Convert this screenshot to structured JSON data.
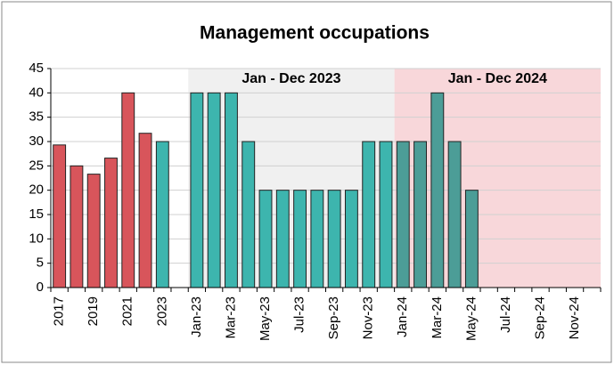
{
  "chart_data": {
    "type": "bar",
    "title": "Management occupations",
    "categories": [
      "2017",
      null,
      "2019",
      null,
      "2021",
      null,
      "2023",
      null,
      "Jan-23",
      null,
      "Mar-23",
      null,
      "May-23",
      null,
      "Jul-23",
      null,
      "Sep-23",
      null,
      "Nov-23",
      null,
      "Jan-24",
      null,
      "Mar-24",
      null,
      "May-24",
      null,
      "Jul-24",
      null,
      "Sep-24",
      null,
      "Nov-24",
      null
    ],
    "values": [
      29.3,
      25,
      23.3,
      26.6,
      40,
      31.7,
      30,
      null,
      40,
      40,
      40,
      30,
      20,
      20,
      20,
      20,
      20,
      20,
      30,
      30,
      30,
      30,
      40,
      30,
      20,
      null,
      null,
      null,
      null,
      null,
      null,
      null
    ],
    "colors": [
      "#d8555b",
      "#d8555b",
      "#d8555b",
      "#d8555b",
      "#d8555b",
      "#d8555b",
      "#3db5ae",
      null,
      "#3db5ae",
      "#3db5ae",
      "#3db5ae",
      "#3db5ae",
      "#3db5ae",
      "#3db5ae",
      "#3db5ae",
      "#3db5ae",
      "#3db5ae",
      "#3db5ae",
      "#3db5ae",
      "#3db5ae",
      "#4c9d97",
      "#4c9d97",
      "#4c9d97",
      "#4c9d97",
      "#4c9d97",
      null,
      null,
      null,
      null,
      null,
      null,
      null
    ],
    "regions": [
      {
        "label": "Jan - Dec 2023",
        "color": "#f0f0f0"
      },
      {
        "label": "Jan - Dec 2024",
        "color": "#f8d7da"
      }
    ],
    "ylim": [
      0,
      45
    ],
    "yticks": [
      0,
      5,
      10,
      15,
      20,
      25,
      30,
      35,
      40,
      45
    ],
    "grid": true
  }
}
